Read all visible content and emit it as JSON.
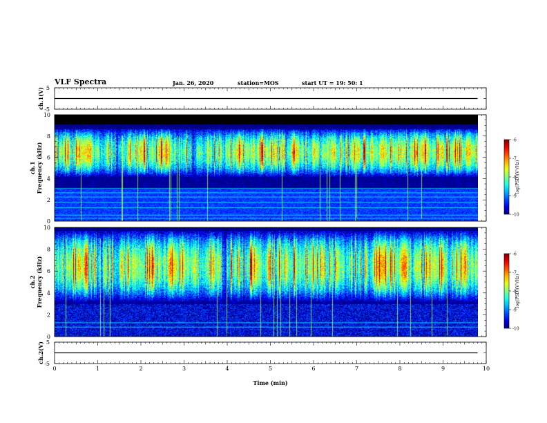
{
  "header": {
    "title": "VLF Spectra",
    "date": "Jan. 26, 2020",
    "station": "station=MOS",
    "start_ut": "start  UT =   19: 50: 1"
  },
  "chart_data": [
    {
      "type": "line",
      "panel": "ch1-waveform",
      "ylabel": "ch.1(V)",
      "ylim": [
        -5,
        5
      ],
      "y_ticks": [
        "5",
        "-5"
      ],
      "x": [
        0,
        9.8
      ],
      "values": [
        0,
        0
      ],
      "xlim": [
        0,
        10
      ]
    },
    {
      "type": "heatmap",
      "panel": "ch1-spectrogram",
      "ylabel": "ch.1\nFrequency (kHz)",
      "ylim": [
        0,
        10
      ],
      "y_ticks": [
        "0",
        "2",
        "4",
        "6",
        "8",
        "10"
      ],
      "xlim": [
        0,
        10
      ],
      "data_extent_min": 9.8,
      "band_kHz": [
        4.5,
        8.5
      ],
      "peak_kHz": 6.5,
      "colorbar": {
        "label": "log(PSD)(V²/Hz)",
        "range": [
          -10,
          -6
        ],
        "ticks": [
          "-6",
          "-7",
          "-8",
          "-9",
          "-10"
        ]
      }
    },
    {
      "type": "heatmap",
      "panel": "ch2-spectrogram",
      "ylabel": "ch.2\nFrequency (kHz)",
      "ylim": [
        0,
        10
      ],
      "y_ticks": [
        "0",
        "2",
        "4",
        "6",
        "8",
        "10"
      ],
      "xlim": [
        0,
        10
      ],
      "data_extent_min": 9.8,
      "band_kHz": [
        3.5,
        9.5
      ],
      "peak_kHz": 6.5,
      "colorbar": {
        "label": "log(PSD)(V²/Hz)",
        "range": [
          -10,
          -6
        ],
        "ticks": [
          "-6",
          "-7",
          "-8",
          "-9",
          "-10"
        ]
      }
    },
    {
      "type": "line",
      "panel": "ch2-waveform",
      "ylabel": "ch.2(V)",
      "ylim": [
        -5,
        5
      ],
      "y_ticks": [
        "5",
        "-5"
      ],
      "x": [
        0,
        9.8
      ],
      "values": [
        0,
        0
      ],
      "xlim": [
        0,
        10
      ],
      "xlabel": "Time  (min)",
      "x_ticks": [
        "0",
        "1",
        "2",
        "3",
        "4",
        "5",
        "6",
        "7",
        "8",
        "9",
        "10"
      ]
    }
  ]
}
